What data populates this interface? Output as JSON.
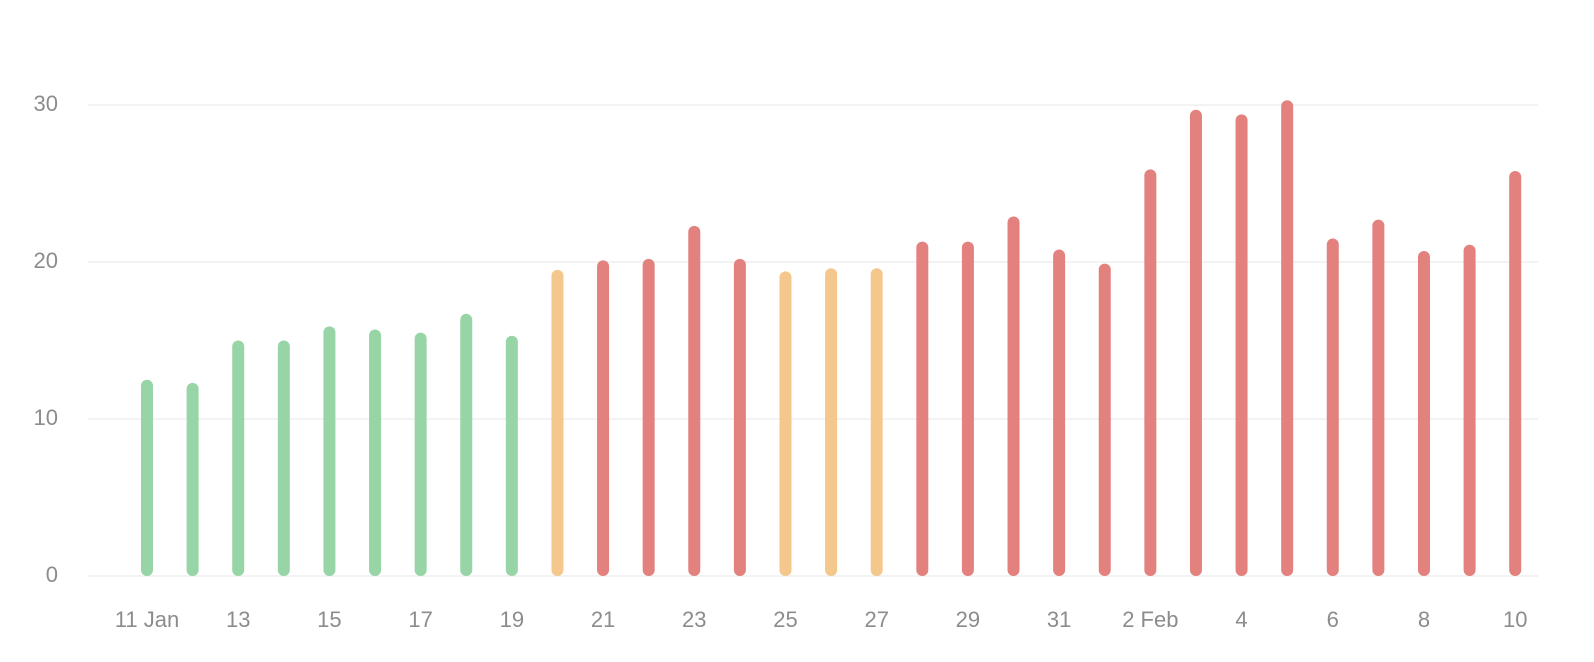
{
  "chart_data": {
    "type": "bar",
    "categories": [
      "11 Jan",
      null,
      "13",
      null,
      "15",
      null,
      "17",
      null,
      "19",
      null,
      "21",
      null,
      "23",
      null,
      "25",
      null,
      "27",
      null,
      "29",
      null,
      "31",
      null,
      "2 Feb",
      null,
      "4",
      null,
      "6",
      null,
      "8",
      null,
      "10"
    ],
    "values": [
      12.5,
      12.3,
      15.0,
      15.0,
      15.9,
      15.7,
      15.5,
      16.7,
      15.3,
      19.5,
      20.1,
      20.2,
      22.3,
      20.2,
      19.4,
      19.6,
      19.6,
      21.3,
      21.3,
      22.9,
      20.8,
      19.9,
      25.9,
      29.7,
      29.4,
      30.3,
      21.5,
      22.7,
      20.7,
      21.1,
      25.8
    ],
    "colors": [
      "#97d5a6",
      "#97d5a6",
      "#97d5a6",
      "#97d5a6",
      "#97d5a6",
      "#97d5a6",
      "#97d5a6",
      "#97d5a6",
      "#97d5a6",
      "#f4c78c",
      "#e3817e",
      "#e3817e",
      "#e3817e",
      "#e3817e",
      "#f4c78c",
      "#f4c78c",
      "#f4c78c",
      "#e3817e",
      "#e3817e",
      "#e3817e",
      "#e3817e",
      "#e3817e",
      "#e3817e",
      "#e3817e",
      "#e3817e",
      "#e3817e",
      "#e3817e",
      "#e3817e",
      "#e3817e",
      "#e3817e",
      "#e3817e"
    ],
    "ylim": [
      0,
      33
    ],
    "yticks": [
      0,
      10,
      20,
      30
    ],
    "grid": true
  }
}
